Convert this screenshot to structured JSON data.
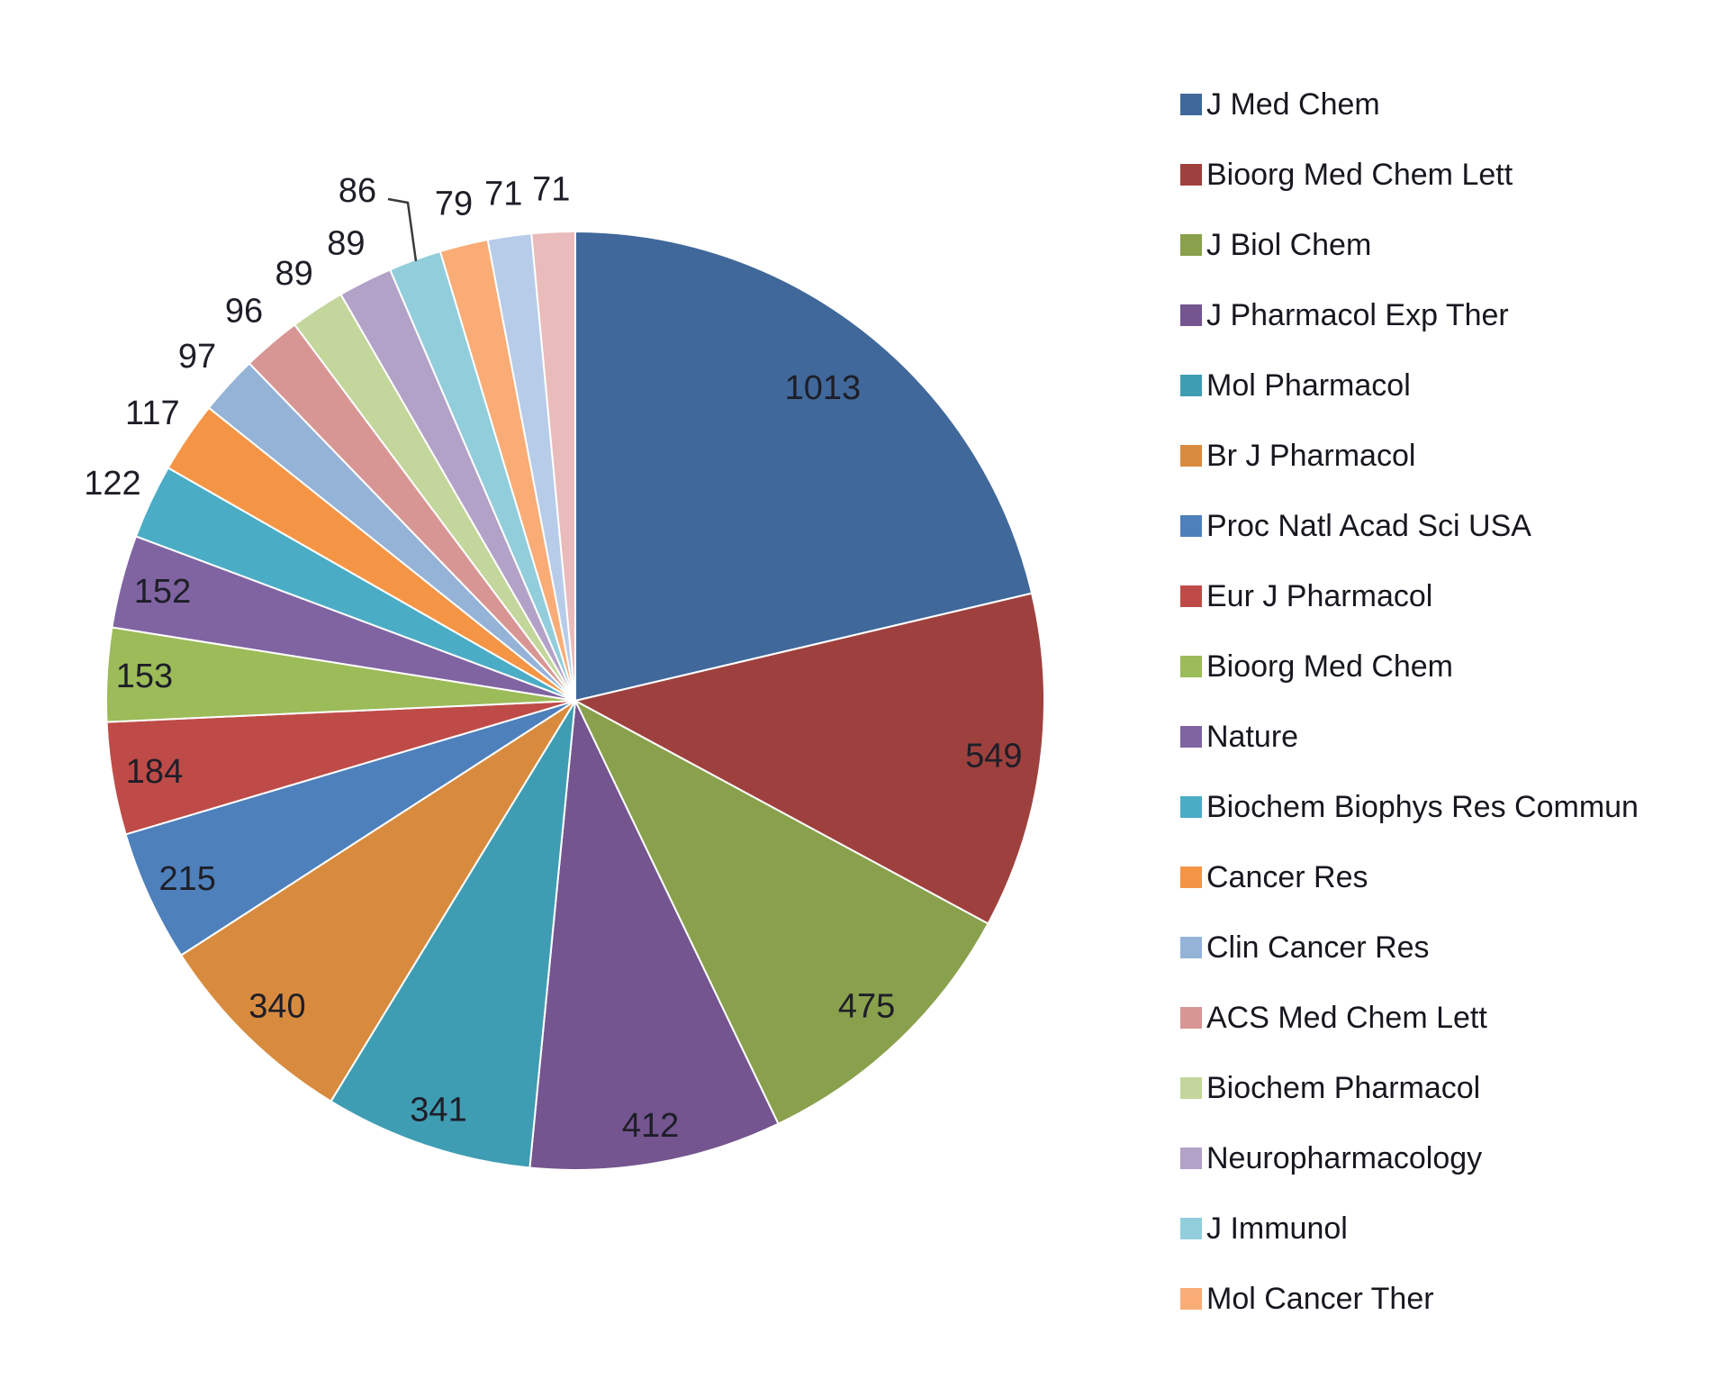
{
  "chart_data": {
    "type": "pie",
    "title": "",
    "legend_position": "right",
    "direction": "clockwise",
    "start_angle_deg": 0,
    "total": 4751,
    "data_labels": "values",
    "slices": [
      {
        "name": "J Med Chem",
        "value": 1013,
        "color": "#40689A",
        "legend": true,
        "label_placement": "inside"
      },
      {
        "name": "Bioorg Med Chem Lett",
        "value": 549,
        "color": "#9E413E",
        "legend": true,
        "label_placement": "inside"
      },
      {
        "name": "J Biol Chem",
        "value": 475,
        "color": "#89A04C",
        "legend": true,
        "label_placement": "inside"
      },
      {
        "name": "J Pharmacol Exp Ther",
        "value": 412,
        "color": "#74558F",
        "legend": true,
        "label_placement": "inside"
      },
      {
        "name": "Mol Pharmacol",
        "value": 341,
        "color": "#3E9DB3",
        "legend": true,
        "label_placement": "inside"
      },
      {
        "name": "Br J Pharmacol",
        "value": 340,
        "color": "#D88B3E",
        "legend": true,
        "label_placement": "inside"
      },
      {
        "name": "Proc Natl Acad Sci USA",
        "value": 215,
        "color": "#4E80BC",
        "legend": true,
        "label_placement": "inside"
      },
      {
        "name": "Eur J Pharmacol",
        "value": 184,
        "color": "#BE4B48",
        "legend": true,
        "label_placement": "inside"
      },
      {
        "name": "Bioorg Med Chem",
        "value": 153,
        "color": "#9CBB59",
        "legend": true,
        "label_placement": "inside"
      },
      {
        "name": "Nature",
        "value": 152,
        "color": "#8064A2",
        "legend": true,
        "label_placement": "inside"
      },
      {
        "name": "Biochem Biophys Res Commun",
        "value": 122,
        "color": "#4BACC6",
        "legend": true,
        "label_placement": "outside"
      },
      {
        "name": "Cancer Res",
        "value": 117,
        "color": "#F49546",
        "legend": true,
        "label_placement": "outside"
      },
      {
        "name": "Clin Cancer Res",
        "value": 97,
        "color": "#95B3D7",
        "legend": true,
        "label_placement": "outside"
      },
      {
        "name": "ACS Med Chem Lett",
        "value": 96,
        "color": "#D79694",
        "legend": true,
        "label_placement": "outside"
      },
      {
        "name": "Biochem Pharmacol",
        "value": 89,
        "color": "#C3D69B",
        "legend": true,
        "label_placement": "outside"
      },
      {
        "name": "Neuropharmacology",
        "value": 89,
        "color": "#B3A2C7",
        "legend": true,
        "label_placement": "outside"
      },
      {
        "name": "J Immunol",
        "value": 86,
        "color": "#92CDDC",
        "legend": true,
        "label_placement": "outside-with-leader-line"
      },
      {
        "name": "Mol Cancer Ther",
        "value": 79,
        "color": "#F9AC76",
        "legend": true,
        "label_placement": "outside"
      },
      {
        "name": "",
        "value": 71,
        "color": "#B7CCE8",
        "legend": false,
        "label_placement": "outside"
      },
      {
        "name": "",
        "value": 71,
        "color": "#E9BBBA",
        "legend": false,
        "label_placement": "outside"
      }
    ]
  }
}
